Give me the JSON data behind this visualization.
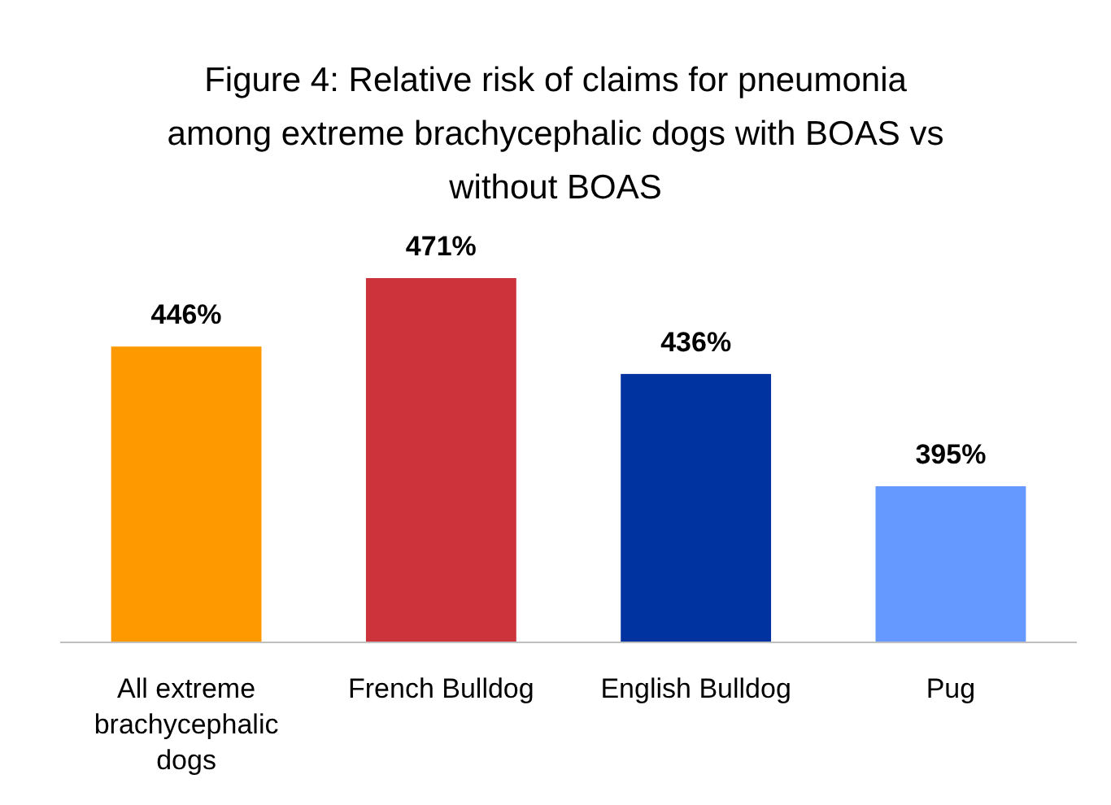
{
  "chart_data": {
    "type": "bar",
    "title": "Figure 4: Relative risk of claims for pneumonia among extreme brachycephalic dogs with BOAS vs without BOAS",
    "categories": [
      "All extreme brachycephalic dogs",
      "French Bulldog",
      "English Bulldog",
      "Pug"
    ],
    "values": [
      446,
      471,
      436,
      395
    ],
    "colors": [
      "#ff9900",
      "#cc333b",
      "#0033a0",
      "#6699ff"
    ],
    "value_labels": [
      "446%",
      "471%",
      "436%",
      "395%"
    ],
    "ylim": [
      338,
      471
    ],
    "tick_labels": "x"
  }
}
